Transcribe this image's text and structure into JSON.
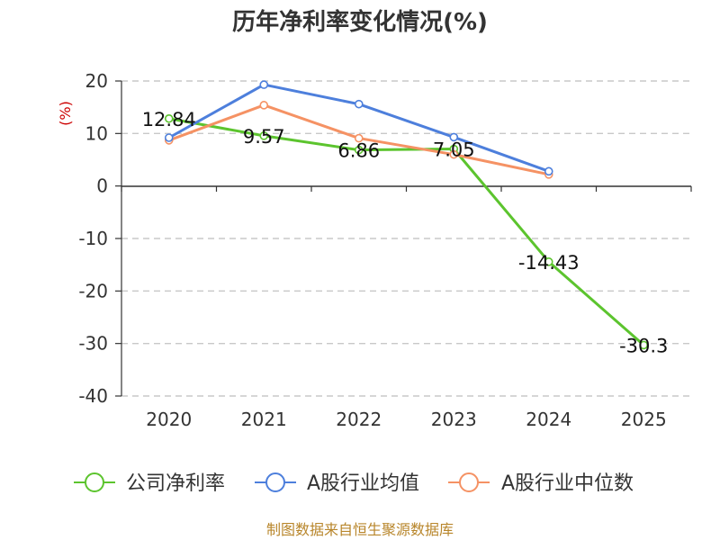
{
  "chart_data": {
    "type": "line",
    "title": "历年净利率变化情况(%)",
    "ylabel": "(%)",
    "xlabel": "",
    "categories": [
      "2020",
      "2021",
      "2022",
      "2023",
      "2024",
      "2025"
    ],
    "ylim": [
      -40,
      20
    ],
    "yticks": [
      20,
      10,
      0,
      -10,
      -20,
      -30,
      -40
    ],
    "grid": true,
    "legend_position": "bottom",
    "series": [
      {
        "name": "公司净利率",
        "color": "#5cc42e",
        "values": [
          12.84,
          9.57,
          6.86,
          7.05,
          -14.43,
          -30.3
        ],
        "labels": [
          "12.84",
          "9.57",
          "6.86",
          "7.05",
          "-14.43",
          "-30.3"
        ]
      },
      {
        "name": "A股行业均值",
        "color": "#4d7fdc",
        "values": [
          9.2,
          19.3,
          15.6,
          9.3,
          2.8,
          null
        ]
      },
      {
        "name": "A股行业中位数",
        "color": "#f59264",
        "values": [
          8.7,
          15.4,
          9.1,
          6.0,
          2.2,
          null
        ]
      }
    ]
  },
  "source": "制图数据来自恒生聚源数据库"
}
